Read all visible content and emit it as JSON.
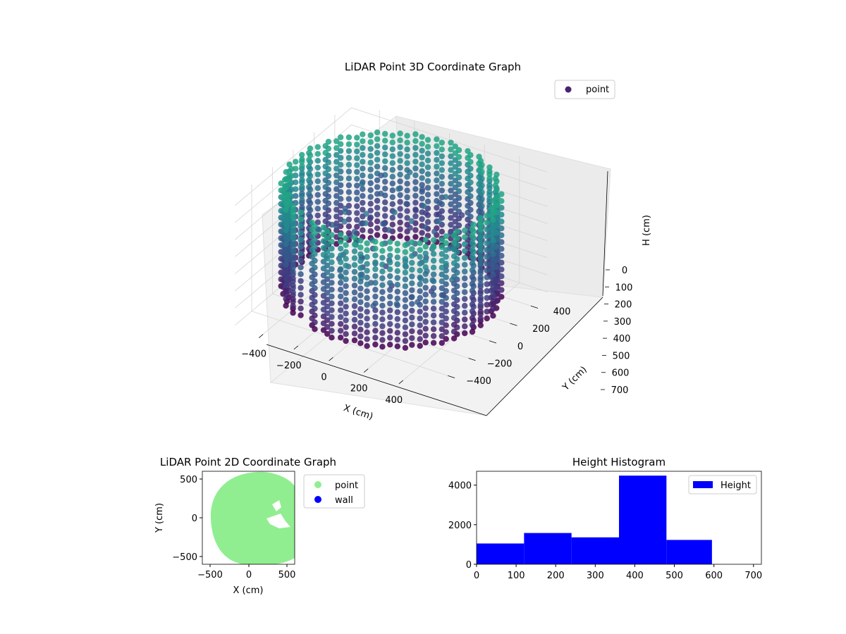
{
  "colors": {
    "point_3d": "#46246f",
    "point_2d": "#90ee90",
    "wall": "#0000ff",
    "histogram": "#0000ff"
  },
  "chart_data": [
    {
      "type": "scatter",
      "title": "LiDAR Point 3D Coordinate Graph",
      "xlabel": "X (cm)",
      "ylabel": "Y (cm)",
      "zlabel": "H (cm)",
      "xlim": [
        -560,
        560
      ],
      "ylim": [
        -560,
        560
      ],
      "zlim": [
        700,
        0
      ],
      "x_ticks": [
        "−400",
        "−200",
        "0",
        "200",
        "400"
      ],
      "y_ticks": [
        "−400",
        "−200",
        "0",
        "200",
        "400"
      ],
      "z_ticks": [
        "0",
        "100",
        "200",
        "300",
        "400",
        "500",
        "600",
        "700"
      ],
      "legend": [
        "point"
      ],
      "legend_position": "top-right",
      "colormap": "viridis",
      "description_shape": "cylindrical wall of points, radius about 520 cm, heights 0 to 600 cm",
      "series": [
        {
          "name": "point"
        }
      ]
    },
    {
      "type": "scatter",
      "title": "LiDAR Point 2D Coordinate Graph",
      "xlabel": "X (cm)",
      "ylabel": "Y (cm)",
      "xlim": [
        -620,
        600
      ],
      "ylim": [
        -600,
        600
      ],
      "x_ticks": [
        "−500",
        "0",
        "500"
      ],
      "y_ticks": [
        "500",
        "0",
        "−500"
      ],
      "legend": [
        "point",
        "wall"
      ],
      "legend_position": "outside-right",
      "series": [
        {
          "name": "point"
        },
        {
          "name": "wall"
        }
      ]
    },
    {
      "type": "bar",
      "title": "Height Histogram",
      "xlabel": "",
      "ylabel": "",
      "xlim": [
        0,
        720
      ],
      "ylim": [
        0,
        4700
      ],
      "x_ticks": [
        "0",
        "100",
        "200",
        "300",
        "400",
        "500",
        "600",
        "700"
      ],
      "y_ticks": [
        "0",
        "2000",
        "4000"
      ],
      "bins": [
        {
          "start": 0,
          "end": 120,
          "count": 1050
        },
        {
          "start": 120,
          "end": 240,
          "count": 1580
        },
        {
          "start": 240,
          "end": 360,
          "count": 1360
        },
        {
          "start": 360,
          "end": 480,
          "count": 4480
        },
        {
          "start": 480,
          "end": 595,
          "count": 1230
        }
      ],
      "legend": [
        "Height"
      ],
      "legend_position": "top-right",
      "series": [
        {
          "name": "Height"
        }
      ]
    }
  ]
}
